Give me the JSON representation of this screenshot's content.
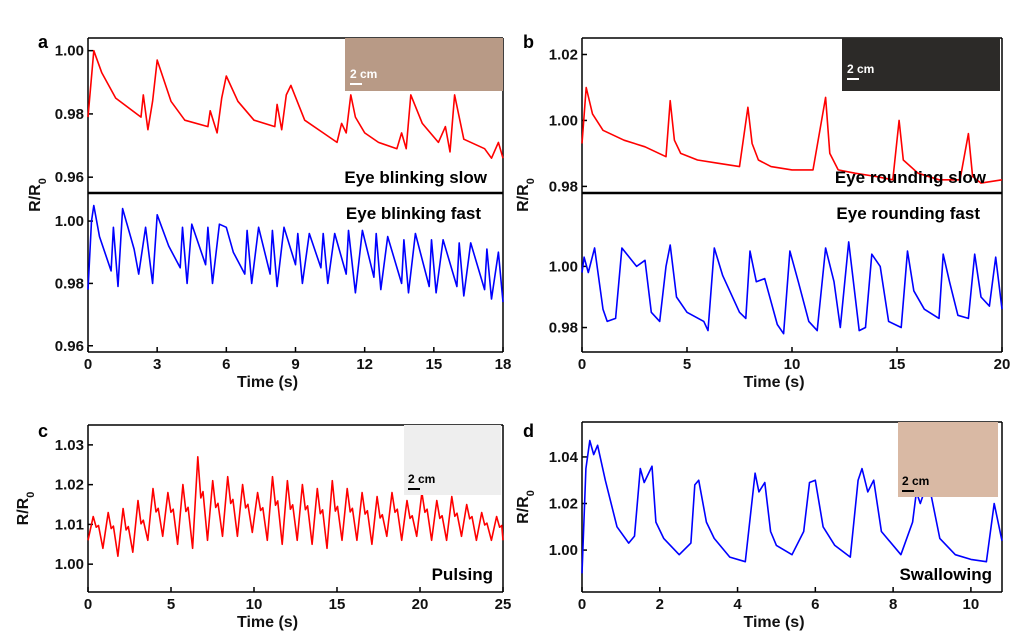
{
  "chart_data": [
    {
      "panel": "a",
      "type": "line",
      "ylabel": "R/R0",
      "xlabel": "Time (s)",
      "xlim": [
        0,
        18
      ],
      "xticks": [
        "0",
        "3",
        "6",
        "9",
        "12",
        "15",
        "18"
      ],
      "subplots": [
        {
          "annotation": "Eye blinking slow",
          "color": "#ff0000",
          "ylim": [
            0.955,
            1.004
          ],
          "yticks": [
            "0.96",
            "0.98",
            "1.00"
          ],
          "inset_scale": "2 cm",
          "x": [
            0,
            0.25,
            0.6,
            1.2,
            2.3,
            2.4,
            2.6,
            2.8,
            3.0,
            3.6,
            4.2,
            5.2,
            5.3,
            5.6,
            5.8,
            6.0,
            6.5,
            7.2,
            8.1,
            8.2,
            8.4,
            8.6,
            8.8,
            9.4,
            10.2,
            10.8,
            11.0,
            11.2,
            11.4,
            11.6,
            12.0,
            12.6,
            13.4,
            13.6,
            13.8,
            14.0,
            14.5,
            15.2,
            15.5,
            15.7,
            15.9,
            16.3,
            17.2,
            17.5,
            17.8,
            18.0
          ],
          "y": [
            0.979,
            1.0,
            0.993,
            0.985,
            0.979,
            0.986,
            0.975,
            0.984,
            0.997,
            0.984,
            0.978,
            0.976,
            0.981,
            0.974,
            0.985,
            0.992,
            0.984,
            0.978,
            0.976,
            0.983,
            0.975,
            0.986,
            0.989,
            0.978,
            0.974,
            0.971,
            0.977,
            0.974,
            0.986,
            0.979,
            0.974,
            0.971,
            0.969,
            0.974,
            0.969,
            0.986,
            0.977,
            0.971,
            0.976,
            0.968,
            0.986,
            0.972,
            0.969,
            0.966,
            0.971,
            0.966
          ]
        },
        {
          "annotation": "Eye blinking fast",
          "color": "#0000ff",
          "ylim": [
            0.958,
            1.009
          ],
          "yticks": [
            "0.96",
            "0.98",
            "1.00"
          ],
          "x": [
            0,
            0.15,
            0.25,
            0.5,
            1.0,
            1.1,
            1.3,
            1.5,
            2.0,
            2.2,
            2.5,
            2.8,
            3.0,
            3.5,
            4.0,
            4.1,
            4.3,
            4.5,
            5.1,
            5.2,
            5.4,
            5.7,
            6.0,
            6.3,
            6.8,
            6.9,
            7.1,
            7.4,
            7.9,
            8.0,
            8.2,
            8.5,
            9.0,
            9.1,
            9.3,
            9.6,
            10.1,
            10.2,
            10.4,
            10.7,
            11.2,
            11.3,
            11.6,
            11.9,
            12.4,
            12.5,
            12.7,
            13.0,
            13.6,
            13.7,
            13.9,
            14.2,
            14.8,
            14.9,
            15.1,
            15.4,
            16.0,
            16.1,
            16.3,
            16.6,
            17.2,
            17.3,
            17.5,
            17.8,
            18.0
          ],
          "y": [
            0.978,
            1.0,
            1.005,
            0.995,
            0.984,
            0.998,
            0.979,
            1.004,
            0.991,
            0.983,
            0.998,
            0.98,
            1.002,
            0.992,
            0.985,
            0.998,
            0.98,
            0.999,
            0.986,
            0.998,
            0.98,
            0.999,
            0.998,
            0.99,
            0.983,
            0.997,
            0.98,
            0.998,
            0.983,
            0.997,
            0.979,
            0.998,
            0.986,
            0.996,
            0.98,
            0.996,
            0.985,
            0.996,
            0.98,
            0.996,
            0.983,
            0.997,
            0.977,
            0.997,
            0.982,
            0.996,
            0.978,
            0.995,
            0.98,
            0.994,
            0.977,
            0.996,
            0.979,
            0.994,
            0.977,
            0.994,
            0.979,
            0.993,
            0.976,
            0.993,
            0.978,
            0.991,
            0.975,
            0.99,
            0.974
          ]
        }
      ]
    },
    {
      "panel": "b",
      "type": "line",
      "ylabel": "R/R0",
      "xlabel": "Time (s)",
      "xlim": [
        0,
        20
      ],
      "xticks": [
        "0",
        "5",
        "10",
        "15",
        "20"
      ],
      "subplots": [
        {
          "annotation": "Eye rounding slow",
          "color": "#ff0000",
          "ylim": [
            0.978,
            1.025
          ],
          "yticks": [
            "0.98",
            "1.00",
            "1.02"
          ],
          "inset_scale": "2 cm",
          "x": [
            0,
            0.2,
            0.5,
            1.0,
            2.0,
            3.0,
            4.0,
            4.2,
            4.4,
            4.7,
            5.5,
            6.5,
            7.5,
            7.9,
            8.1,
            8.4,
            9.0,
            10.0,
            11.0,
            11.6,
            11.8,
            12.2,
            13.0,
            14.0,
            14.8,
            15.1,
            15.3,
            16.0,
            17.0,
            18.0,
            18.4,
            18.6,
            19.0,
            20.0
          ],
          "y": [
            0.993,
            1.01,
            1.002,
            0.997,
            0.994,
            0.992,
            0.989,
            1.006,
            0.994,
            0.99,
            0.988,
            0.987,
            0.986,
            1.004,
            0.993,
            0.988,
            0.986,
            0.985,
            0.985,
            1.007,
            0.99,
            0.985,
            0.984,
            0.983,
            0.982,
            1.0,
            0.988,
            0.984,
            0.982,
            0.982,
            0.996,
            0.983,
            0.981,
            0.982
          ]
        },
        {
          "annotation": "Eye rounding fast",
          "color": "#0000ff",
          "ylim": [
            0.972,
            1.024
          ],
          "yticks": [
            "0.98",
            "1.00"
          ],
          "x": [
            0,
            0.1,
            0.3,
            0.6,
            1.0,
            1.2,
            1.6,
            1.9,
            2.6,
            3.0,
            3.3,
            3.7,
            4.0,
            4.2,
            4.5,
            5.0,
            5.8,
            6.0,
            6.3,
            6.7,
            7.5,
            7.8,
            8.0,
            8.3,
            8.7,
            9.3,
            9.6,
            9.9,
            10.3,
            10.8,
            11.2,
            11.6,
            12.0,
            12.3,
            12.7,
            13.2,
            13.5,
            13.8,
            14.2,
            14.6,
            15.2,
            15.5,
            15.8,
            16.3,
            17.0,
            17.2,
            17.5,
            17.9,
            18.4,
            18.7,
            19.0,
            19.4,
            19.7,
            20.0
          ],
          "y": [
            0.998,
            1.003,
            0.998,
            1.006,
            0.986,
            0.982,
            0.983,
            1.006,
            1.0,
            1.002,
            0.985,
            0.982,
            1.0,
            1.007,
            0.99,
            0.985,
            0.982,
            0.979,
            1.006,
            0.997,
            0.985,
            0.983,
            1.005,
            0.995,
            0.996,
            0.981,
            0.978,
            1.005,
            0.995,
            0.982,
            0.979,
            1.006,
            0.995,
            0.98,
            1.008,
            0.979,
            0.98,
            1.004,
            1.0,
            0.982,
            0.98,
            1.005,
            0.992,
            0.986,
            0.983,
            1.004,
            0.995,
            0.984,
            0.983,
            1.004,
            0.99,
            0.987,
            1.003,
            0.986
          ]
        }
      ]
    },
    {
      "panel": "c",
      "type": "line",
      "annotation": "Pulsing",
      "color": "#ff0000",
      "ylabel": "R/R0",
      "xlabel": "Time (s)",
      "xlim": [
        0,
        25
      ],
      "ylim": [
        0.993,
        1.035
      ],
      "xticks": [
        "0",
        "5",
        "10",
        "15",
        "20",
        "25"
      ],
      "yticks": [
        "1.00",
        "1.01",
        "1.02",
        "1.03"
      ],
      "inset_scale": "2 cm",
      "period_s": 0.9,
      "valleys": [
        1.006,
        1.004,
        1.002,
        1.003,
        1.006,
        1.007,
        1.005,
        1.004,
        1.006,
        1.007,
        1.007,
        1.008,
        1.006,
        1.005,
        1.006,
        1.005,
        1.004,
        1.006,
        1.006,
        1.005,
        1.007,
        1.006,
        1.007,
        1.006,
        1.006,
        1.007,
        1.006,
        1.006
      ],
      "peaks": [
        1.012,
        1.013,
        1.014,
        1.016,
        1.019,
        1.018,
        1.02,
        1.027,
        1.021,
        1.022,
        1.02,
        1.018,
        1.022,
        1.021,
        1.02,
        1.019,
        1.021,
        1.019,
        1.018,
        1.017,
        1.018,
        1.016,
        1.018,
        1.016,
        1.017,
        1.015,
        1.013,
        1.012
      ]
    },
    {
      "panel": "d",
      "type": "line",
      "annotation": "Swallowing",
      "color": "#0000ff",
      "ylabel": "R/R0",
      "xlabel": "Time (s)",
      "xlim": [
        0,
        10.8
      ],
      "ylim": [
        0.982,
        1.055
      ],
      "xticks": [
        "0",
        "2",
        "4",
        "6",
        "8",
        "10"
      ],
      "yticks": [
        "1.00",
        "1.02",
        "1.04"
      ],
      "inset_scale": "2 cm",
      "x": [
        0,
        0.1,
        0.2,
        0.3,
        0.4,
        0.6,
        0.9,
        1.2,
        1.35,
        1.5,
        1.6,
        1.8,
        1.9,
        2.1,
        2.5,
        2.8,
        2.9,
        3.0,
        3.2,
        3.4,
        3.8,
        4.2,
        4.45,
        4.55,
        4.7,
        4.85,
        5.0,
        5.4,
        5.7,
        5.85,
        6.0,
        6.2,
        6.5,
        6.9,
        7.1,
        7.2,
        7.35,
        7.5,
        7.7,
        8.2,
        8.5,
        8.6,
        8.7,
        8.9,
        9.2,
        9.6,
        10.0,
        10.4,
        10.6,
        10.8
      ],
      "y": [
        0.99,
        1.035,
        1.047,
        1.041,
        1.045,
        1.03,
        1.01,
        1.003,
        1.006,
        1.035,
        1.029,
        1.036,
        1.012,
        1.005,
        0.998,
        1.003,
        1.028,
        1.03,
        1.012,
        1.005,
        0.997,
        0.995,
        1.033,
        1.025,
        1.029,
        1.008,
        1.002,
        0.998,
        1.008,
        1.029,
        1.03,
        1.01,
        1.002,
        0.997,
        1.03,
        1.035,
        1.025,
        1.03,
        1.008,
        0.998,
        1.012,
        1.025,
        1.02,
        1.03,
        1.005,
        0.998,
        0.996,
        0.995,
        1.02,
        1.004
      ]
    }
  ]
}
